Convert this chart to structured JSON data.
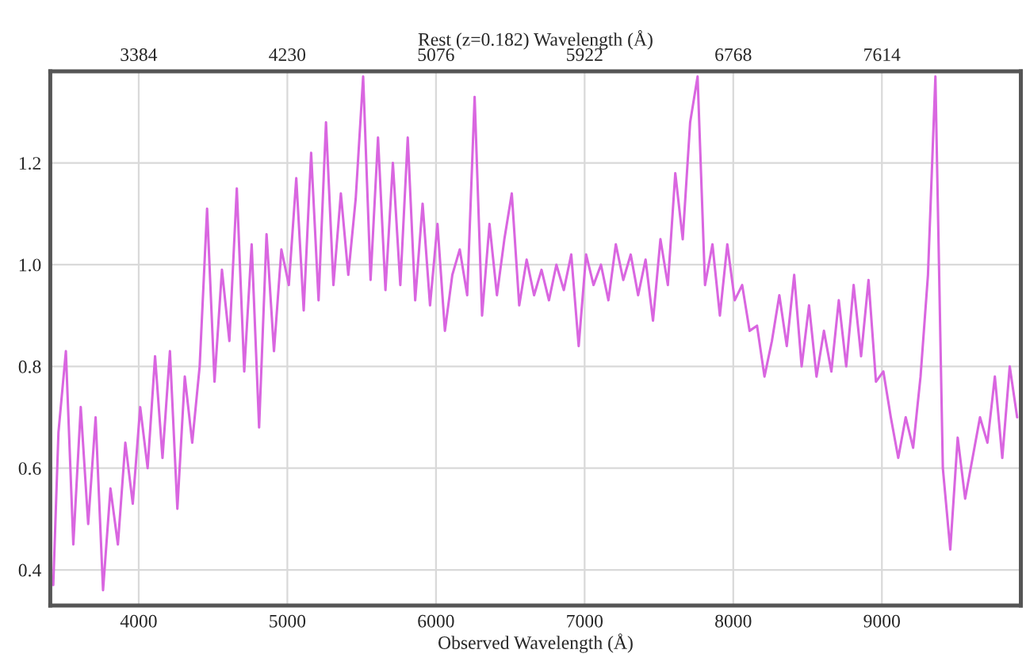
{
  "chart_data": {
    "type": "line",
    "xlabel": "Observed Wavelength (Å)",
    "x2label": "Rest (z=0.182) Wavelength (Å)",
    "xlim": [
      3405,
      9935
    ],
    "xticks": [
      4000,
      5000,
      6000,
      7000,
      8000,
      9000
    ],
    "x2lim": [
      2881,
      8405
    ],
    "x2ticks": [
      3384,
      4230,
      5076,
      5922,
      6768,
      7614
    ],
    "ylim": [
      0.33,
      1.38
    ],
    "yticks": [
      0.4,
      0.6,
      0.8,
      {
        "value": 1.0,
        "label": "1.0"
      },
      1.2
    ],
    "grid": true,
    "legend": false,
    "marker": "none",
    "line_style": "solid",
    "series": [
      {
        "color": "#d966e0",
        "x": [
          3425,
          3460,
          3510,
          3560,
          3610,
          3660,
          3710,
          3760,
          3810,
          3860,
          3910,
          3960,
          4010,
          4060,
          4110,
          4160,
          4210,
          4260,
          4310,
          4360,
          4410,
          4460,
          4510,
          4560,
          4610,
          4660,
          4710,
          4760,
          4810,
          4860,
          4910,
          4960,
          5010,
          5060,
          5110,
          5160,
          5210,
          5260,
          5310,
          5360,
          5410,
          5460,
          5510,
          5560,
          5610,
          5660,
          5710,
          5760,
          5810,
          5860,
          5910,
          5960,
          6010,
          6060,
          6110,
          6160,
          6210,
          6260,
          6310,
          6360,
          6410,
          6460,
          6510,
          6560,
          6610,
          6660,
          6710,
          6760,
          6810,
          6860,
          6910,
          6960,
          7010,
          7060,
          7110,
          7160,
          7210,
          7260,
          7310,
          7360,
          7410,
          7460,
          7510,
          7560,
          7610,
          7660,
          7710,
          7760,
          7810,
          7860,
          7910,
          7960,
          8010,
          8060,
          8110,
          8160,
          8210,
          8260,
          8310,
          8360,
          8410,
          8460,
          8510,
          8560,
          8610,
          8660,
          8710,
          8760,
          8810,
          8860,
          8910,
          8960,
          9010,
          9060,
          9110,
          9160,
          9210,
          9260,
          9310,
          9360,
          9410,
          9460,
          9510,
          9560,
          9610,
          9660,
          9710,
          9760,
          9810,
          9860,
          9910
        ],
        "values": [
          0.37,
          0.67,
          0.83,
          0.45,
          0.72,
          0.49,
          0.7,
          0.36,
          0.56,
          0.45,
          0.65,
          0.53,
          0.72,
          0.6,
          0.82,
          0.62,
          0.83,
          0.52,
          0.78,
          0.65,
          0.8,
          1.11,
          0.77,
          0.99,
          0.85,
          1.15,
          0.79,
          1.04,
          0.68,
          1.06,
          0.83,
          1.03,
          0.96,
          1.17,
          0.91,
          1.22,
          0.93,
          1.28,
          0.96,
          1.14,
          0.98,
          1.13,
          1.37,
          0.97,
          1.25,
          0.95,
          1.2,
          0.96,
          1.25,
          0.93,
          1.12,
          0.92,
          1.08,
          0.87,
          0.98,
          1.03,
          0.94,
          1.33,
          0.9,
          1.08,
          0.94,
          1.05,
          1.14,
          0.92,
          1.01,
          0.94,
          0.99,
          0.93,
          1.0,
          0.95,
          1.02,
          0.84,
          1.02,
          0.96,
          1.0,
          0.93,
          1.04,
          0.97,
          1.02,
          0.94,
          1.01,
          0.89,
          1.05,
          0.96,
          1.18,
          1.05,
          1.28,
          1.37,
          0.96,
          1.04,
          0.9,
          1.04,
          0.93,
          0.96,
          0.87,
          0.88,
          0.78,
          0.85,
          0.94,
          0.84,
          0.98,
          0.8,
          0.92,
          0.78,
          0.87,
          0.79,
          0.93,
          0.8,
          0.96,
          0.82,
          0.97,
          0.77,
          0.79,
          0.7,
          0.62,
          0.7,
          0.64,
          0.78,
          0.98,
          1.37,
          0.6,
          0.44,
          0.66,
          0.54,
          0.62,
          0.7,
          0.65,
          0.78,
          0.62,
          0.8,
          0.7
        ]
      }
    ]
  }
}
